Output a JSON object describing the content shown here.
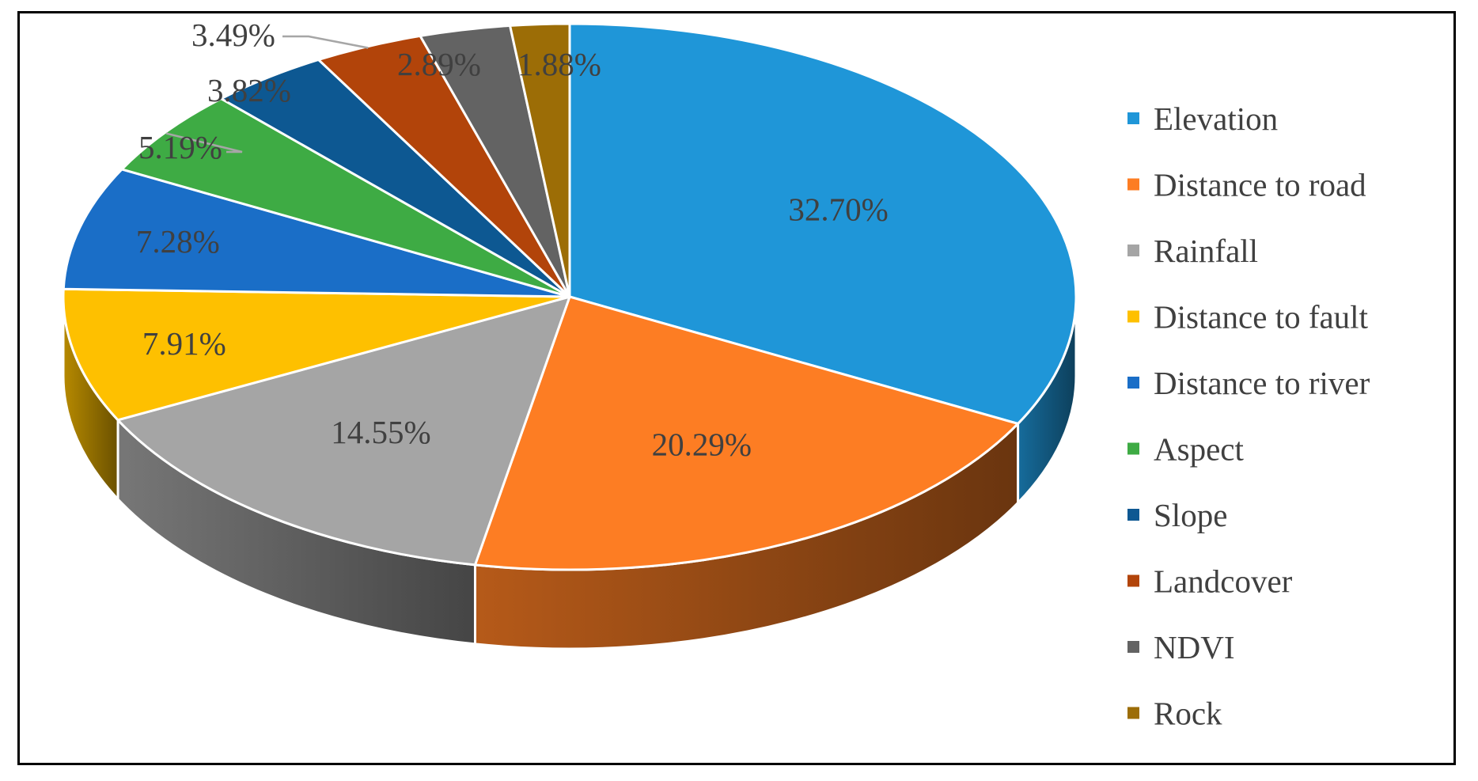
{
  "chart_data": {
    "type": "pie",
    "variant": "3d",
    "title": "",
    "legend_position": "right",
    "slices": [
      {
        "name": "Elevation",
        "value": 32.7,
        "label": "32.70%",
        "color": "#1f96d8"
      },
      {
        "name": "Distance to road",
        "value": 20.29,
        "label": "20.29%",
        "color": "#fd7d23"
      },
      {
        "name": "Rainfall",
        "value": 14.55,
        "label": "14.55%",
        "color": "#a5a5a5"
      },
      {
        "name": "Distance to fault",
        "value": 7.91,
        "label": "7.91%",
        "color": "#fec000"
      },
      {
        "name": "Distance to river",
        "value": 7.28,
        "label": "7.28%",
        "color": "#1a6ec7"
      },
      {
        "name": "Aspect",
        "value": 5.19,
        "label": "5.19%",
        "color": "#3eab44"
      },
      {
        "name": "Slope",
        "value": 3.82,
        "label": "3.82%",
        "color": "#0d5892"
      },
      {
        "name": "Landcover",
        "value": 3.49,
        "label": "3.49%",
        "color": "#b2440a"
      },
      {
        "name": "NDVI",
        "value": 2.89,
        "label": "2.89%",
        "color": "#636363"
      },
      {
        "name": "Rock",
        "value": 1.88,
        "label": "1.88%",
        "color": "#9c6d06"
      }
    ]
  }
}
